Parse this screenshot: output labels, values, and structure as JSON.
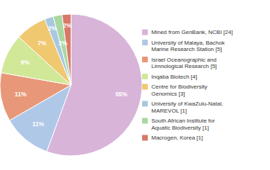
{
  "chart_data": {
    "type": "pie",
    "categories": [
      "Mined from GenBank, NCBI [24]",
      "University of Malaya, Bachok\nMarine Research Station [5]",
      "Israel Oceanographic and\nLimnological Research [5]",
      "Inqaba Biotech [4]",
      "Centre for Biodiversity\nGenomics [3]",
      "University of KwaZulu-Natal,\nMAREVOL [1]",
      "South African Institute for\nAquatic Biodiversity [1]",
      "Macrogen, Korea [1]"
    ],
    "values": [
      55,
      11,
      11,
      9,
      7,
      2,
      2,
      2
    ],
    "value_labels": [
      "55%",
      "11%",
      "11%",
      "9%",
      "7%",
      "2%",
      "2%",
      "2%"
    ],
    "colors": [
      "#d8b4d8",
      "#b0c8e8",
      "#e89878",
      "#d0e898",
      "#f0c870",
      "#a8c8e0",
      "#a8d8a0",
      "#d87868"
    ],
    "data_labels": true,
    "legend": "right"
  }
}
